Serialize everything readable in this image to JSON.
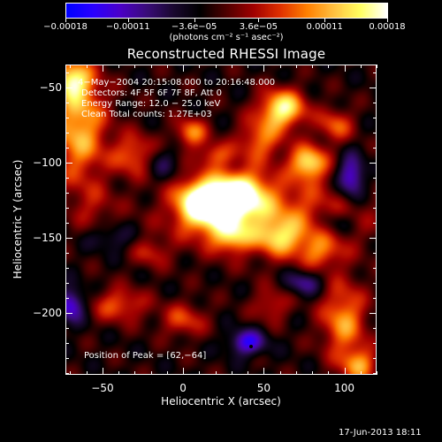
{
  "colors": {
    "background": "#000000",
    "foreground": "#ffffff",
    "colormap": [
      "#0000ff",
      "#2a00ff",
      "#4b00c8",
      "#3a0c7a",
      "#1a0830",
      "#000000",
      "#500000",
      "#a00000",
      "#e03000",
      "#ff7f00",
      "#ffc040",
      "#ffff60",
      "#ffffff"
    ]
  },
  "chart_data": {
    "type": "heatmap",
    "title": "Reconstructed RHESSI Image",
    "xlabel": "Heliocentric X (arcsec)",
    "ylabel": "Heliocentric Y (arcsec)",
    "xlim": [
      -73,
      120
    ],
    "ylim": [
      -241,
      -35
    ],
    "xticks": [
      -50,
      0,
      50,
      100
    ],
    "xtick_labels": [
      "−50",
      "0",
      "50",
      "100"
    ],
    "yticks": [
      -50,
      -100,
      -150,
      -200
    ],
    "ytick_labels": [
      "−50",
      "−100",
      "−150",
      "−200"
    ],
    "colorbar": {
      "range": [
        -0.00018,
        0.00018
      ],
      "ticks": [
        -0.00018,
        -0.00011,
        -3.6e-05,
        3.6e-05,
        0.00011,
        0.00018
      ],
      "tick_labels": [
        "−0.00018",
        "−0.00011",
        "−3.6e−05",
        "3.6e−05",
        "0.00011",
        "0.00018"
      ],
      "units": "(photons cm⁻² s⁻¹ asec⁻²)"
    },
    "annotations": [
      "4−May−2004 20:15:08.000 to 20:16:48.000",
      "Detectors: 4F 5F 6F 7F 8F, Att 0",
      "Energy Range: 12.0 − 25.0 keV",
      "Clean    Total counts: 1.27E+03"
    ],
    "peak": {
      "x": 62,
      "y": -64,
      "label": "Position of Peak = [62,−64]"
    },
    "blobs": [
      {
        "x": 55,
        "y": -135,
        "sx": 40,
        "sy": 18,
        "a": 0.0001
      },
      {
        "x": 20,
        "y": -130,
        "sx": 15,
        "sy": 12,
        "a": 0.00014
      },
      {
        "x": 35,
        "y": -120,
        "sx": 12,
        "sy": 10,
        "a": 0.00015
      },
      {
        "x": 10,
        "y": -125,
        "sx": 10,
        "sy": 10,
        "a": 0.00012
      },
      {
        "x": 78,
        "y": -100,
        "sx": 8,
        "sy": 8,
        "a": 0.00016
      },
      {
        "x": 62,
        "y": -64,
        "sx": 10,
        "sy": 9,
        "a": 0.00018
      },
      {
        "x": -65,
        "y": -75,
        "sx": 12,
        "sy": 28,
        "a": 0.00014
      },
      {
        "x": -70,
        "y": -45,
        "sx": 8,
        "sy": 8,
        "a": 0.00013
      },
      {
        "x": -30,
        "y": -95,
        "sx": 10,
        "sy": 10,
        "a": 0.0001
      },
      {
        "x": 5,
        "y": -80,
        "sx": 7,
        "sy": 7,
        "a": 0.00011
      },
      {
        "x": 48,
        "y": -85,
        "sx": 10,
        "sy": 10,
        "a": 0.0001
      },
      {
        "x": 95,
        "y": -75,
        "sx": 8,
        "sy": 8,
        "a": 9e-05
      },
      {
        "x": 20,
        "y": -95,
        "sx": 8,
        "sy": 6,
        "a": 8e-05
      },
      {
        "x": 30,
        "y": -150,
        "sx": 8,
        "sy": 7,
        "a": 9e-05
      },
      {
        "x": 60,
        "y": -150,
        "sx": 10,
        "sy": 8,
        "a": 0.0001
      },
      {
        "x": 85,
        "y": -160,
        "sx": 10,
        "sy": 8,
        "a": 8e-05
      },
      {
        "x": -40,
        "y": -195,
        "sx": 12,
        "sy": 8,
        "a": 9e-05
      },
      {
        "x": 0,
        "y": -205,
        "sx": 10,
        "sy": 8,
        "a": 8e-05
      },
      {
        "x": 55,
        "y": -195,
        "sx": 8,
        "sy": 8,
        "a": 7e-05
      },
      {
        "x": 100,
        "y": -205,
        "sx": 10,
        "sy": 18,
        "a": 0.00012
      },
      {
        "x": 110,
        "y": -235,
        "sx": 8,
        "sy": 8,
        "a": 0.00011
      },
      {
        "x": -20,
        "y": -160,
        "sx": 8,
        "sy": 7,
        "a": 6e-05
      },
      {
        "x": -55,
        "y": -130,
        "sx": 10,
        "sy": 10,
        "a": 4e-05
      },
      {
        "x": 40,
        "y": -220,
        "sx": 8,
        "sy": 6,
        "a": -0.00012
      },
      {
        "x": 105,
        "y": -110,
        "sx": 6,
        "sy": 10,
        "a": -0.00013
      },
      {
        "x": -70,
        "y": -195,
        "sx": 6,
        "sy": 8,
        "a": -0.00012
      },
      {
        "x": 75,
        "y": -180,
        "sx": 8,
        "sy": 6,
        "a": -8e-05
      },
      {
        "x": -15,
        "y": -100,
        "sx": 8,
        "sy": 8,
        "a": -6e-05
      },
      {
        "x": -45,
        "y": -150,
        "sx": 10,
        "sy": 6,
        "a": -5e-05
      },
      {
        "x": 95,
        "y": -140,
        "sx": 8,
        "sy": 6,
        "a": -6e-05
      }
    ],
    "base_level": -2e-05
  },
  "footer": {
    "timestamp": "17-Jun-2013 18:11"
  }
}
